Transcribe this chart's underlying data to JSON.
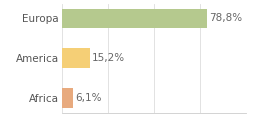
{
  "categories": [
    "Africa",
    "America",
    "Europa"
  ],
  "values": [
    6.1,
    15.2,
    78.8
  ],
  "bar_colors": [
    "#e8aa7e",
    "#f5cf76",
    "#b5c98e"
  ],
  "labels": [
    "6,1%",
    "15,2%",
    "78,8%"
  ],
  "xlim": [
    0,
    100
  ],
  "background_color": "#ffffff",
  "label_fontsize": 7.5,
  "tick_fontsize": 7.5,
  "bar_height": 0.5
}
